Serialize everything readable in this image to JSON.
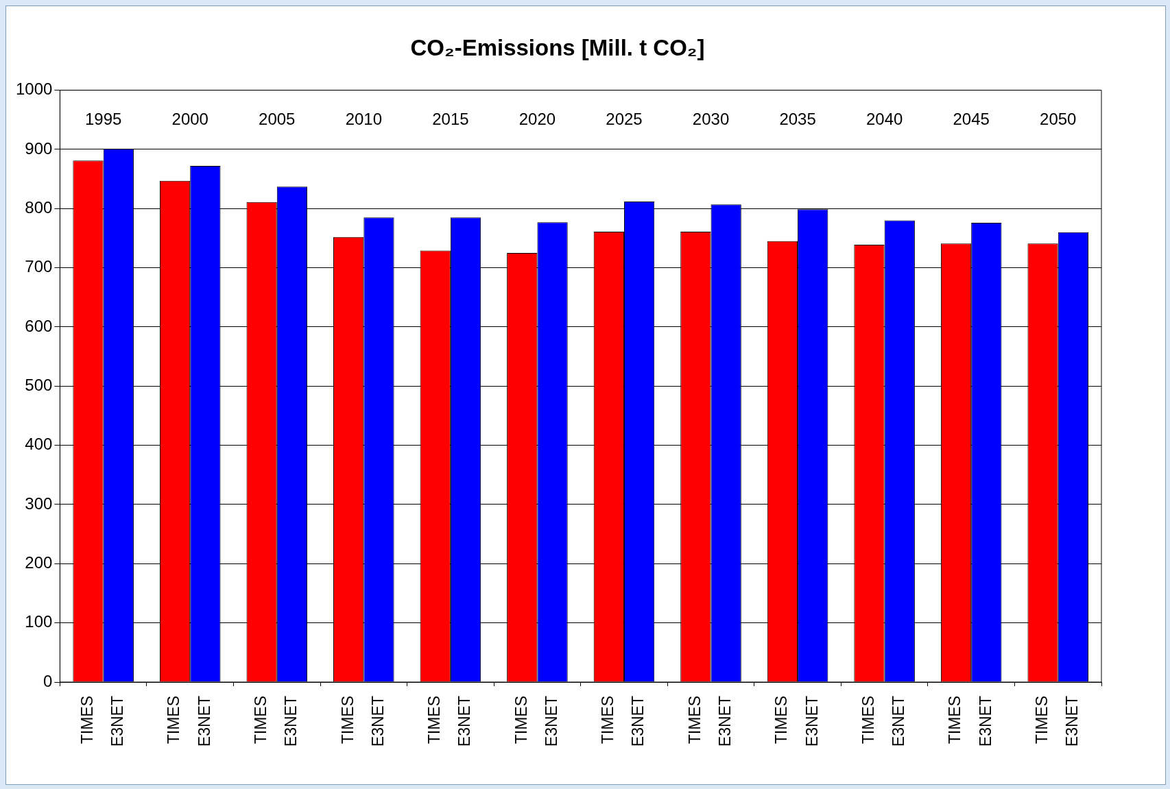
{
  "chart_data": {
    "type": "bar",
    "title": "CO₂-Emissions [Mill. t CO₂]",
    "categories": [
      "1995",
      "2000",
      "2005",
      "2010",
      "2015",
      "2020",
      "2025",
      "2030",
      "2035",
      "2040",
      "2045",
      "2050"
    ],
    "series": [
      {
        "name": "TIMES",
        "color": "#ff0000",
        "values": [
          881,
          847,
          811,
          752,
          729,
          725,
          761,
          761,
          745,
          739,
          741,
          741
        ]
      },
      {
        "name": "E3NET",
        "color": "#0000ff",
        "values": [
          901,
          872,
          837,
          785,
          785,
          777,
          812,
          807,
          799,
          780,
          776,
          760
        ]
      }
    ],
    "ylim": [
      0,
      1000
    ],
    "yticks": [
      0,
      100,
      200,
      300,
      400,
      500,
      600,
      700,
      800,
      900,
      1000
    ],
    "grid": "y"
  }
}
